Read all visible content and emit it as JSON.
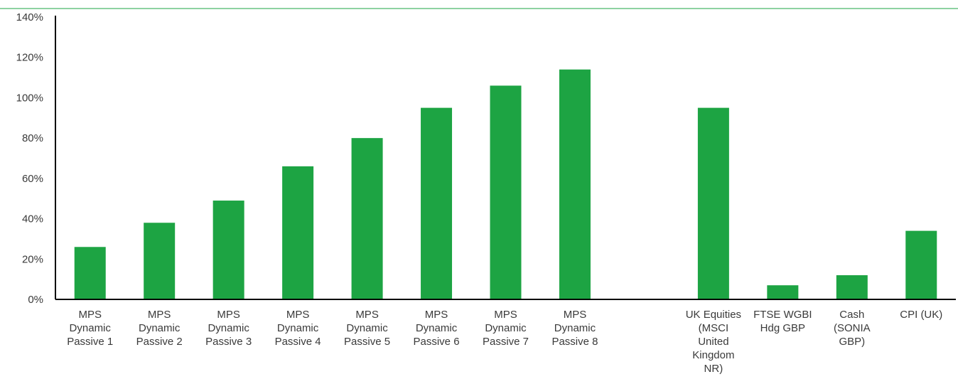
{
  "chart_data": {
    "type": "bar",
    "categories": [
      [
        "MPS",
        "Dynamic",
        "Passive 1"
      ],
      [
        "MPS",
        "Dynamic",
        "Passive 2"
      ],
      [
        "MPS",
        "Dynamic",
        "Passive 3"
      ],
      [
        "MPS",
        "Dynamic",
        "Passive 4"
      ],
      [
        "MPS",
        "Dynamic",
        "Passive 5"
      ],
      [
        "MPS",
        "Dynamic",
        "Passive 6"
      ],
      [
        "MPS",
        "Dynamic",
        "Passive 7"
      ],
      [
        "MPS",
        "Dynamic",
        "Passive 8"
      ],
      [],
      [
        "UK Equities",
        "(MSCI",
        "United",
        "Kingdom",
        "NR)"
      ],
      [
        "FTSE WGBI",
        "Hdg GBP"
      ],
      [
        "Cash",
        "(SONIA",
        "GBP)"
      ],
      [
        "CPI (UK)"
      ]
    ],
    "values": [
      26,
      38,
      49,
      66,
      80,
      95,
      106,
      114,
      null,
      95,
      7,
      12,
      34
    ],
    "yticks": [
      "0%",
      "20%",
      "40%",
      "60%",
      "80%",
      "100%",
      "120%",
      "140%"
    ],
    "ylim": [
      0,
      140
    ],
    "bar_color": "#1da443",
    "top_rule_color": "#1da443",
    "grid": false
  }
}
